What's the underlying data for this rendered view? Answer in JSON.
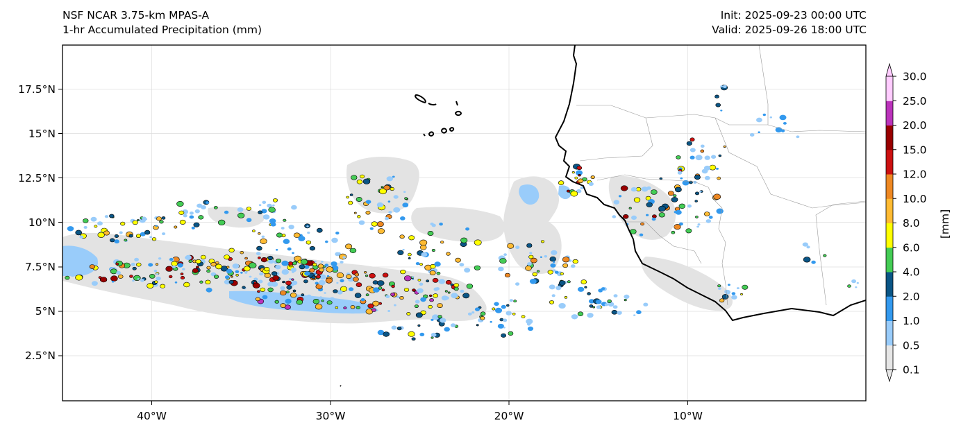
{
  "header": {
    "model": "NSF NCAR 3.75-km MPAS-A",
    "field": "1-hr Accumulated Precipitation (mm)",
    "init": "Init: 2025-09-23 00:00 UTC",
    "valid": "Valid: 2025-09-26 18:00 UTC"
  },
  "map": {
    "lon_range": [
      -45,
      0
    ],
    "lat_range": [
      0,
      20
    ],
    "lon_ticks": [
      "40°W",
      "30°W",
      "20°W",
      "10°W"
    ],
    "lat_ticks": [
      "17.5°N",
      "15°N",
      "12.5°N",
      "10°N",
      "7.5°N",
      "5°N",
      "2.5°N"
    ],
    "gridlines": true
  },
  "colorbar": {
    "label": "[mm]",
    "levels": [
      "0.1",
      "0.5",
      "1.0",
      "2.0",
      "4.0",
      "6.0",
      "8.0",
      "10.0",
      "12.0",
      "15.0",
      "20.0",
      "25.0",
      "30.0"
    ],
    "colors": [
      "#e6e6e6",
      "#99ccfa",
      "#3399ee",
      "#0a5585",
      "#44cc55",
      "#ffff00",
      "#ffbb33",
      "#ee8822",
      "#cc1111",
      "#990000",
      "#bb33bb",
      "#ffccff"
    ],
    "extend": "both"
  }
}
